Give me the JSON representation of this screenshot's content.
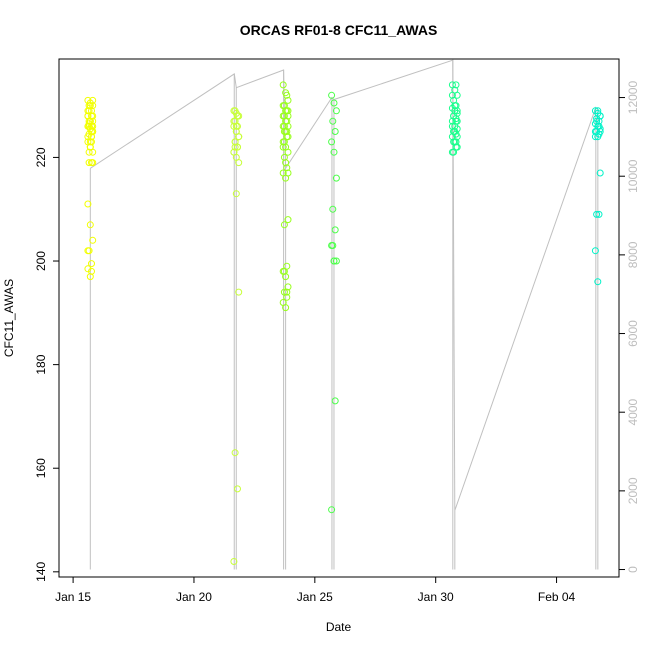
{
  "chart_data": {
    "type": "scatter",
    "title": "ORCAS RF01-8 CFC11_AWAS",
    "xlabel": "Date",
    "ylabel": "CFC11_AWAS",
    "x_is_date": true,
    "xlim": [
      "2016-01-14T10:00",
      "2016-02-06T14:00"
    ],
    "ylim": [
      139,
      239
    ],
    "y2lim": [
      -190,
      12980
    ],
    "x_ticks": [
      {
        "date": "2016-01-15",
        "label": "Jan 15"
      },
      {
        "date": "2016-01-20",
        "label": "Jan 20"
      },
      {
        "date": "2016-01-25",
        "label": "Jan 25"
      },
      {
        "date": "2016-01-30",
        "label": "Jan 30"
      },
      {
        "date": "2016-02-04",
        "label": "Feb 04"
      }
    ],
    "y_ticks": [
      140,
      160,
      180,
      200,
      220
    ],
    "y2_ticks": [
      0,
      2000,
      4000,
      6000,
      8000,
      10000,
      12000
    ],
    "grid": false,
    "legend": "none",
    "secondary_line_color": "#c0c0c0",
    "series": [
      {
        "color": "#f2ff00",
        "x": [
          "2016-01-15T17:05",
          "2016-01-15T17:05",
          "2016-01-15T17:05",
          "2016-01-15T17:05",
          "2016-01-15T17:05",
          "2016-01-15T17:05",
          "2016-01-15T17:05",
          "2016-01-15T17:05",
          "2016-01-15T17:05",
          "2016-01-15T17:05",
          "2016-01-15T17:05",
          "2016-01-15T17:05",
          "2016-01-15T17:05",
          "2016-01-15T17:05",
          "2016-01-15T17:05",
          "2016-01-15T17:05",
          "2016-01-15T17:05",
          "2016-01-15T17:05",
          "2016-01-15T17:05",
          "2016-01-15T17:05",
          "2016-01-15T17:05",
          "2016-01-15T17:05",
          "2016-01-15T17:05",
          "2016-01-15T17:05",
          "2016-01-15T17:05",
          "2016-01-15T17:05",
          "2016-01-15T17:05",
          "2016-01-15T17:05",
          "2016-01-15T17:05",
          "2016-01-15T17:05",
          "2016-01-15T17:05",
          "2016-01-15T17:05",
          "2016-01-15T17:05",
          "2016-01-15T17:05",
          "2016-01-15T17:05",
          "2016-01-15T17:05",
          "2016-01-15T17:05",
          "2016-01-15T17:05",
          "2016-01-15T17:05",
          "2016-01-15T17:05",
          "2016-01-15T17:05",
          "2016-01-15T17:05",
          "2016-01-15T17:05",
          "2016-01-15T17:05",
          "2016-01-15T17:05",
          "2016-01-15T17:05",
          "2016-01-15T17:05",
          "2016-01-15T17:05",
          "2016-01-15T17:05",
          "2016-01-15T17:05"
        ],
        "y": [
          231,
          230.5,
          230,
          229,
          228,
          228,
          227,
          227,
          226.5,
          226,
          226,
          225.5,
          225,
          224.5,
          224,
          223,
          222,
          221,
          219,
          219,
          211,
          207,
          204,
          202,
          199.5,
          198.5,
          197,
          231,
          230,
          229,
          228,
          227,
          226,
          226,
          225,
          224,
          223,
          219,
          221,
          198,
          202,
          222,
          228,
          226,
          224,
          229,
          230,
          225,
          227,
          223
        ]
      },
      {
        "color": "#c8ff3a",
        "x": [
          "2016-01-21T18:00",
          "2016-01-21T18:00",
          "2016-01-21T18:00",
          "2016-01-21T18:00",
          "2016-01-21T18:00",
          "2016-01-21T18:00",
          "2016-01-21T18:00",
          "2016-01-21T18:00",
          "2016-01-21T18:00",
          "2016-01-21T18:00",
          "2016-01-21T18:00",
          "2016-01-21T18:00",
          "2016-01-21T18:00",
          "2016-01-21T18:00",
          "2016-01-21T18:00",
          "2016-01-21T18:00",
          "2016-01-21T18:00",
          "2016-01-21T18:00",
          "2016-01-21T18:00",
          "2016-01-21T18:00",
          "2016-01-21T18:00",
          "2016-01-21T18:00",
          "2016-01-21T18:00",
          "2016-01-21T18:00",
          "2016-01-21T18:00",
          "2016-01-21T18:00",
          "2016-01-21T18:00",
          "2016-01-21T18:00",
          "2016-01-21T18:00",
          "2016-01-21T18:00"
        ],
        "y": [
          229,
          228.5,
          228,
          227,
          226,
          226,
          225,
          224,
          223,
          222,
          221,
          220,
          219,
          229,
          228,
          227,
          225,
          224,
          223,
          222,
          221,
          213,
          194,
          163,
          156,
          142,
          226,
          224,
          222,
          228
        ]
      },
      {
        "color": "#98ff1c",
        "x": [
          "2016-01-23T19:00",
          "2016-01-23T19:00",
          "2016-01-23T19:00",
          "2016-01-23T19:00",
          "2016-01-23T19:00",
          "2016-01-23T19:00",
          "2016-01-23T19:00",
          "2016-01-23T19:00",
          "2016-01-23T19:00",
          "2016-01-23T19:00",
          "2016-01-23T19:00",
          "2016-01-23T19:00",
          "2016-01-23T19:00",
          "2016-01-23T19:00",
          "2016-01-23T19:00",
          "2016-01-23T19:00",
          "2016-01-23T19:00",
          "2016-01-23T19:00",
          "2016-01-23T19:00",
          "2016-01-23T19:00",
          "2016-01-23T19:00",
          "2016-01-23T19:00",
          "2016-01-23T19:00",
          "2016-01-23T19:00",
          "2016-01-23T19:00",
          "2016-01-23T19:00",
          "2016-01-23T19:00",
          "2016-01-23T19:00",
          "2016-01-23T19:00",
          "2016-01-23T19:00",
          "2016-01-23T19:00",
          "2016-01-23T19:00",
          "2016-01-23T19:00",
          "2016-01-23T19:00",
          "2016-01-23T19:00",
          "2016-01-23T19:00",
          "2016-01-23T19:00",
          "2016-01-23T19:00",
          "2016-01-23T19:00",
          "2016-01-23T19:00",
          "2016-01-23T19:00",
          "2016-01-23T19:00",
          "2016-01-23T19:00",
          "2016-01-23T19:00",
          "2016-01-23T19:00"
        ],
        "y": [
          234,
          232.5,
          231,
          230,
          229,
          228,
          227,
          226,
          225,
          224,
          223,
          222,
          221,
          220,
          218,
          217,
          216,
          208,
          207,
          199,
          198,
          197,
          195,
          194,
          193,
          192,
          191,
          229,
          228,
          227,
          226,
          225,
          224,
          223,
          232,
          230,
          229,
          228,
          226,
          225,
          222,
          219,
          217,
          198,
          194
        ]
      },
      {
        "color": "#4cff4a",
        "x": [
          "2016-01-25T19:00",
          "2016-01-25T19:00",
          "2016-01-25T19:00",
          "2016-01-25T19:00",
          "2016-01-25T19:00",
          "2016-01-25T19:00",
          "2016-01-25T19:00",
          "2016-01-25T19:00",
          "2016-01-25T19:00",
          "2016-01-25T19:00",
          "2016-01-25T19:00",
          "2016-01-25T19:00",
          "2016-01-25T19:00",
          "2016-01-25T19:00",
          "2016-01-25T19:00",
          "2016-01-25T19:00",
          "2016-01-25T19:00"
        ],
        "y": [
          232,
          230.5,
          229,
          227,
          225,
          223,
          221,
          216,
          210,
          206,
          203,
          200,
          200,
          203,
          173,
          152,
          200
        ]
      },
      {
        "color": "#1aff8d",
        "x": [
          "2016-01-30T19:00",
          "2016-01-30T19:00",
          "2016-01-30T19:00",
          "2016-01-30T19:00",
          "2016-01-30T19:00",
          "2016-01-30T19:00",
          "2016-01-30T19:00",
          "2016-01-30T19:00",
          "2016-01-30T19:00",
          "2016-01-30T19:00",
          "2016-01-30T19:00",
          "2016-01-30T19:00",
          "2016-01-30T19:00",
          "2016-01-30T19:00",
          "2016-01-30T19:00",
          "2016-01-30T19:00",
          "2016-01-30T19:00",
          "2016-01-30T19:00",
          "2016-01-30T19:00",
          "2016-01-30T19:00",
          "2016-01-30T19:00",
          "2016-01-30T19:00",
          "2016-01-30T19:00",
          "2016-01-30T19:00",
          "2016-01-30T19:00",
          "2016-01-30T19:00",
          "2016-01-30T19:00",
          "2016-01-30T19:00",
          "2016-01-30T19:00",
          "2016-01-30T19:00",
          "2016-01-30T19:00",
          "2016-01-30T19:00",
          "2016-01-30T19:00",
          "2016-01-30T19:00",
          "2016-01-30T19:00"
        ],
        "y": [
          234,
          233,
          232,
          231,
          230,
          229.5,
          229,
          228.5,
          228,
          227.5,
          227,
          226,
          225.5,
          225,
          224.5,
          224,
          223,
          222,
          221,
          234,
          232,
          230,
          229,
          228,
          227,
          226,
          225,
          224,
          223,
          222,
          221,
          229,
          227,
          225,
          223
        ]
      },
      {
        "color": "#00f2c8",
        "x": [
          "2016-02-05T17:00",
          "2016-02-05T17:00",
          "2016-02-05T17:00",
          "2016-02-05T17:00",
          "2016-02-05T17:00",
          "2016-02-05T17:00",
          "2016-02-05T17:00",
          "2016-02-05T17:00",
          "2016-02-05T17:00",
          "2016-02-05T17:00",
          "2016-02-05T17:00",
          "2016-02-05T17:00",
          "2016-02-05T17:00",
          "2016-02-05T17:00",
          "2016-02-05T17:00",
          "2016-02-05T17:00",
          "2016-02-05T17:00",
          "2016-02-05T17:00",
          "2016-02-05T17:00",
          "2016-02-05T17:00",
          "2016-02-05T17:00",
          "2016-02-05T17:00",
          "2016-02-05T17:00"
        ],
        "y": [
          229,
          228.5,
          228,
          227.5,
          227,
          226.5,
          226,
          225.5,
          225,
          224.5,
          224,
          229,
          228,
          227,
          226,
          225,
          224,
          217,
          209,
          209,
          202,
          196,
          225
        ]
      }
    ],
    "secondary_series": {
      "x": [
        "2016-01-15T17:05",
        "2016-01-21T16:00",
        "2016-01-21T18:00",
        "2016-01-23T17:00",
        "2016-01-23T19:00",
        "2016-01-25T17:00",
        "2016-01-25T19:00",
        "2016-01-30T17:00",
        "2016-01-30T19:00",
        "2016-02-05T15:00",
        "2016-02-05T17:00"
      ],
      "y": [
        10200,
        12600,
        12250,
        12700,
        10200,
        12000,
        11950,
        12950,
        1500,
        11750,
        11700
      ]
    }
  }
}
